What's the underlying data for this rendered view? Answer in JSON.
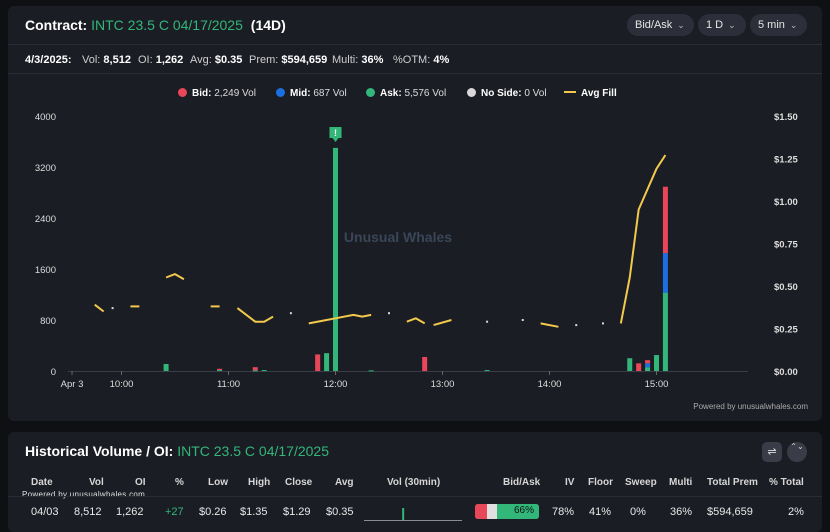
{
  "header": {
    "contract_label": "Contract:",
    "contract": "INTC 23.5 C 04/17/2025",
    "days": "(14D)",
    "dropdowns": [
      {
        "label": "Bid/Ask"
      },
      {
        "label": "1 D"
      },
      {
        "label": "5 min"
      }
    ],
    "chevron": "⌄"
  },
  "stats": {
    "date": "4/3/2025:",
    "vol_label": "Vol:",
    "vol": "8,512",
    "oi_label": "OI:",
    "oi": "1,262",
    "avg_label": "Avg:",
    "avg": "$0.35",
    "prem_label": "Prem:",
    "prem": "$594,659",
    "multi_label": "Multi:",
    "multi": "36%",
    "otm_label": "%OTM:",
    "otm": "4%"
  },
  "legend": {
    "bid_label": "Bid:",
    "bid_value": "2,249 Vol",
    "mid_label": "Mid:",
    "mid_value": "687 Vol",
    "ask_label": "Ask:",
    "ask_value": "5,576 Vol",
    "noside_label": "No Side:",
    "noside_value": "0 Vol",
    "avgfill_label": "Avg Fill"
  },
  "colors": {
    "bid": "#e8475a",
    "mid": "#1b6fe0",
    "ask": "#32b67a",
    "noside": "#d9d9d9",
    "avgfill": "#f2c94c"
  },
  "chart_data": {
    "type": "bar",
    "watermark": "Unusual Whales",
    "marker": "!",
    "y_left": {
      "ticks": [
        "4000",
        "3200",
        "2400",
        "1600",
        "800",
        "0"
      ],
      "range": [
        0,
        4000
      ]
    },
    "y_right": {
      "ticks": [
        "$1.50",
        "$1.25",
        "$1.00",
        "$0.75",
        "$0.50",
        "$0.25",
        "$0.00"
      ],
      "range": [
        0,
        1.5
      ]
    },
    "x_ticks": [
      "Apr 3",
      "10:00",
      "11:00",
      "12:00",
      "13:00",
      "14:00",
      "15:00"
    ],
    "bars": [
      {
        "x": "10:25",
        "bid": 0,
        "mid": 0,
        "ask": 110
      },
      {
        "x": "10:55",
        "bid": 20,
        "mid": 0,
        "ask": 15
      },
      {
        "x": "11:15",
        "bid": 50,
        "mid": 0,
        "ask": 10
      },
      {
        "x": "11:20",
        "bid": 0,
        "mid": 0,
        "ask": 15
      },
      {
        "x": "11:50",
        "bid": 260,
        "mid": 0,
        "ask": 0
      },
      {
        "x": "11:55",
        "bid": 0,
        "mid": 0,
        "ask": 280
      },
      {
        "x": "12:00",
        "bid": 0,
        "mid": 0,
        "ask": 3500
      },
      {
        "x": "12:20",
        "bid": 0,
        "mid": 0,
        "ask": 10
      },
      {
        "x": "12:50",
        "bid": 220,
        "mid": 0,
        "ask": 0
      },
      {
        "x": "13:25",
        "bid": 0,
        "mid": 0,
        "ask": 15
      },
      {
        "x": "14:45",
        "bid": 0,
        "mid": 0,
        "ask": 200
      },
      {
        "x": "14:50",
        "bid": 120,
        "mid": 0,
        "ask": 0
      },
      {
        "x": "14:55",
        "bid": 50,
        "mid": 60,
        "ask": 60
      },
      {
        "x": "15:00",
        "bid": 0,
        "mid": 0,
        "ask": 250
      },
      {
        "x": "15:05",
        "bid": 1040,
        "mid": 620,
        "ask": 1230
      }
    ],
    "avg_fill": [
      [
        [
          "09:45",
          0.39
        ],
        [
          "09:50",
          0.35
        ]
      ],
      [
        [
          "09:55",
          0.37
        ]
      ],
      [
        [
          "10:05",
          0.38
        ],
        [
          "10:10",
          0.38
        ]
      ],
      [
        [
          "10:25",
          0.55
        ],
        [
          "10:30",
          0.57
        ],
        [
          "10:35",
          0.54
        ]
      ],
      [
        [
          "10:50",
          0.38
        ],
        [
          "10:55",
          0.38
        ]
      ],
      [
        [
          "11:05",
          0.37
        ],
        [
          "11:15",
          0.29
        ],
        [
          "11:20",
          0.29
        ],
        [
          "11:25",
          0.32
        ]
      ],
      [
        [
          "11:35",
          0.34
        ]
      ],
      [
        [
          "11:45",
          0.28
        ],
        [
          "11:55",
          0.3
        ],
        [
          "12:00",
          0.31
        ],
        [
          "12:10",
          0.33
        ],
        [
          "12:15",
          0.32
        ],
        [
          "12:20",
          0.33
        ]
      ],
      [
        [
          "12:30",
          0.34
        ]
      ],
      [
        [
          "12:40",
          0.29
        ],
        [
          "12:45",
          0.31
        ],
        [
          "12:50",
          0.28
        ]
      ],
      [
        [
          "12:55",
          0.27
        ],
        [
          "13:05",
          0.3
        ]
      ],
      [
        [
          "13:25",
          0.29
        ]
      ],
      [
        [
          "13:45",
          0.3
        ]
      ],
      [
        [
          "13:55",
          0.28
        ],
        [
          "14:05",
          0.26
        ]
      ],
      [
        [
          "14:15",
          0.27
        ]
      ],
      [
        [
          "14:30",
          0.28
        ]
      ],
      [
        [
          "14:40",
          0.28
        ],
        [
          "14:45",
          0.55
        ],
        [
          "14:50",
          0.95
        ],
        [
          "15:00",
          1.19
        ],
        [
          "15:05",
          1.27
        ]
      ]
    ]
  },
  "powered": "Powered by unusualwhales.com",
  "history": {
    "title": "Historical Volume / OI:",
    "contract": "INTC 23.5 C 04/17/2025",
    "filter_icon": "⇌",
    "expand_icon": "⌃⌄",
    "powered": "Powered by unusualwhales.com",
    "headers": [
      "Date",
      "Vol",
      "OI",
      "%",
      "Low",
      "High",
      "Close",
      "Avg",
      "Vol (30min)",
      "Bid/Ask",
      "IV",
      "Floor",
      "Sweep",
      "Multi",
      "Total Prem",
      "% Total"
    ],
    "row": {
      "date": "04/03",
      "vol": "8,512",
      "oi": "1,262",
      "pct": "+27",
      "low": "$0.26",
      "high": "$1.35",
      "close": "$1.29",
      "avg": "$0.35",
      "bidask": "66%",
      "bid_fraction": 0.26,
      "ask_fraction": 0.66,
      "iv": "78%",
      "floor": "41%",
      "sweep": "0%",
      "multi": "36%",
      "total_prem": "$594,659",
      "pct_total": "2%"
    },
    "vol30_bars": [
      0,
      0,
      0,
      0,
      0,
      0,
      0,
      0,
      0,
      0,
      0,
      0,
      0,
      0,
      0,
      0,
      0,
      0,
      0,
      0,
      0,
      0,
      0,
      0,
      0,
      0,
      0,
      0,
      0,
      0,
      0,
      0,
      0,
      0,
      0,
      0,
      0,
      1,
      0,
      0,
      0,
      0,
      0,
      0,
      0,
      0,
      0,
      0,
      0,
      0,
      0,
      0,
      0,
      0,
      0,
      0,
      0,
      0,
      0,
      0,
      0,
      0,
      0,
      0,
      0,
      0,
      0,
      0,
      0,
      0,
      0,
      0,
      0,
      0,
      0,
      0,
      0,
      0,
      0,
      0,
      0,
      0,
      0,
      0,
      0,
      0,
      0,
      0,
      0,
      0,
      0,
      0,
      0,
      0,
      0
    ]
  }
}
